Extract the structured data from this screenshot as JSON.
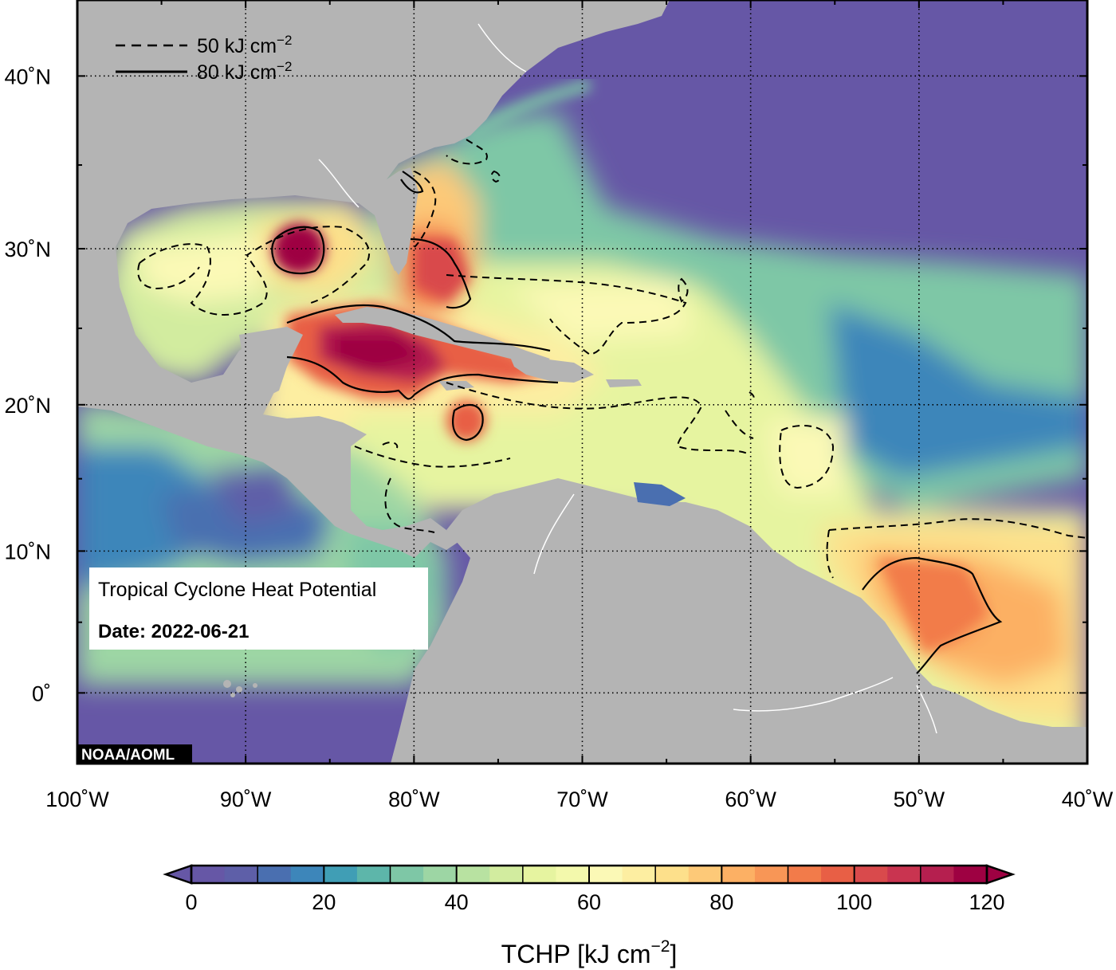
{
  "map": {
    "lon_range": [
      -100,
      -40
    ],
    "lat_range": [
      -5,
      44
    ],
    "lon_ticks": [
      {
        "value": -100,
        "label": "100˚W"
      },
      {
        "value": -90,
        "label": "90˚W"
      },
      {
        "value": -80,
        "label": "80˚W"
      },
      {
        "value": -70,
        "label": "70˚W"
      },
      {
        "value": -60,
        "label": "60˚W"
      },
      {
        "value": -50,
        "label": "50˚W"
      },
      {
        "value": -40,
        "label": "40˚W"
      }
    ],
    "lat_ticks": [
      {
        "value": 40,
        "label": "40˚N"
      },
      {
        "value": 30,
        "label": "30˚N"
      },
      {
        "value": 20,
        "label": "20˚N"
      },
      {
        "value": 10,
        "label": "10˚N"
      },
      {
        "value": 0,
        "label": "0˚"
      }
    ],
    "grid": "dotted",
    "colors": {
      "land": "#b4b4b4",
      "low": "#6657a6",
      "mid": "#e9f5a0",
      "high": "#9e0142",
      "contour": "#000000"
    }
  },
  "legend": {
    "dashed_label": "50 kJ cm",
    "solid_label": "80 kJ cm",
    "exponent": "−2"
  },
  "info_box": {
    "title": "Tropical Cyclone Heat Potential",
    "date": "Date: 2022-06-21"
  },
  "credit": "NOAA/AOML",
  "colorbar": {
    "min": 0,
    "max": 120,
    "step": 5,
    "ticks": [
      "0",
      "20",
      "40",
      "60",
      "80",
      "100",
      "120"
    ],
    "title": "TCHP [kJ cm",
    "title_exponent": "−2",
    "title_close": "]",
    "colors": [
      "#6657a6",
      "#5e5fa8",
      "#4a6fb0",
      "#3d86ba",
      "#409eb5",
      "#5db6aa",
      "#7ec7a6",
      "#9dd6a4",
      "#b8e2a1",
      "#d2ec9f",
      "#e6f4a0",
      "#f3f9ac",
      "#fbf9b6",
      "#fdeea1",
      "#fde08b",
      "#fdc978",
      "#fcb064",
      "#f89656",
      "#f27b4a",
      "#e85f45",
      "#d94a4c",
      "#c93450",
      "#b51f4f",
      "#9e0142"
    ]
  }
}
